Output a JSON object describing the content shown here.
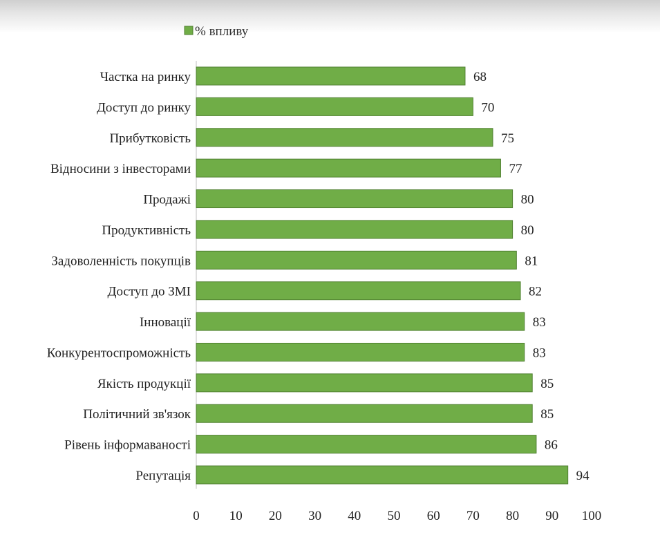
{
  "chart_data": {
    "type": "bar",
    "orientation": "horizontal",
    "categories": [
      "Частка на ринку",
      "Доступ до ринку",
      "Прибутковість",
      "Відносини з інвесторами",
      "Продажі",
      "Продуктивність",
      "Задоволенність покупців",
      "Доступ до ЗМІ",
      "Інновації",
      "Конкурентоспроможність",
      "Якість продукції",
      "Політичний зв'язок",
      "Рівень інформаваності",
      "Репутація"
    ],
    "series": [
      {
        "name": "% впливу",
        "values": [
          68,
          70,
          75,
          77,
          80,
          80,
          81,
          82,
          83,
          83,
          85,
          85,
          86,
          94
        ]
      }
    ],
    "xlim": [
      0,
      100
    ],
    "xticks": [
      "0",
      "10",
      "20",
      "30",
      "40",
      "50",
      "60",
      "70",
      "80",
      "90",
      "100"
    ],
    "legend_position": "top-left",
    "grid": false,
    "colors": {
      "bar_fill": "#70ad47",
      "bar_stroke": "#4f7f30",
      "axis": "#bfbfbf"
    }
  }
}
